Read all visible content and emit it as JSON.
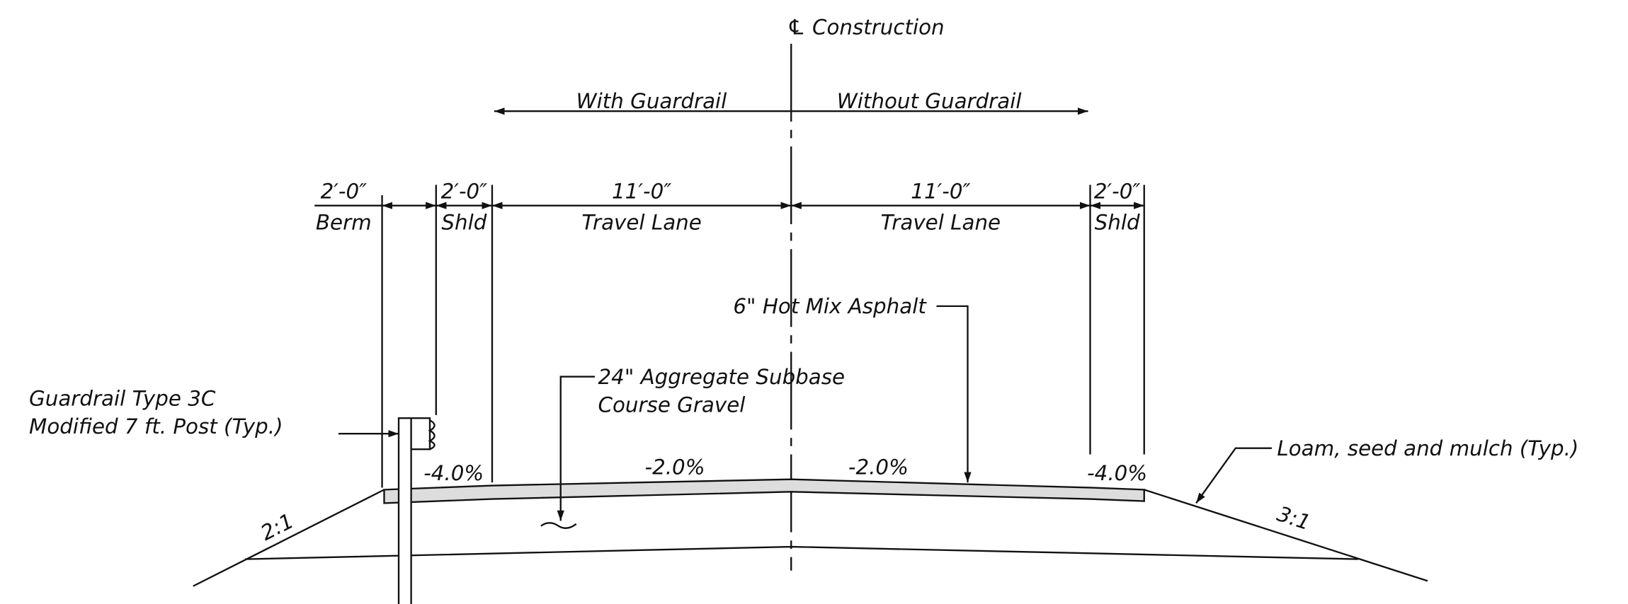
{
  "centerline": "℄ Construction",
  "zones": {
    "left": "With Guardrail",
    "right": "Without Guardrail"
  },
  "dimensions": [
    {
      "value": "2′-0″",
      "label": "Berm"
    },
    {
      "value": "2′-0″",
      "label": "Shld"
    },
    {
      "value": "11′-0″",
      "label": "Travel Lane"
    },
    {
      "value": "11′-0″",
      "label": "Travel Lane"
    },
    {
      "value": "2′-0″",
      "label": "Shld"
    }
  ],
  "callouts": {
    "asphalt": "6\" Hot Mix  Asphalt",
    "subbase": [
      "24\" Aggregate  Subbase",
      "Course  Gravel"
    ],
    "guardrail": [
      "Guardrail Type 3C",
      "Modified  7  ft. Post (Typ.)"
    ],
    "loam": "Loam, seed  and  mulch  (Typ.)"
  },
  "slopes": [
    "-4.0%",
    "-2.0%",
    "-2.0%",
    "-4.0%"
  ],
  "side_slopes": [
    "2:1",
    "3:1"
  ]
}
